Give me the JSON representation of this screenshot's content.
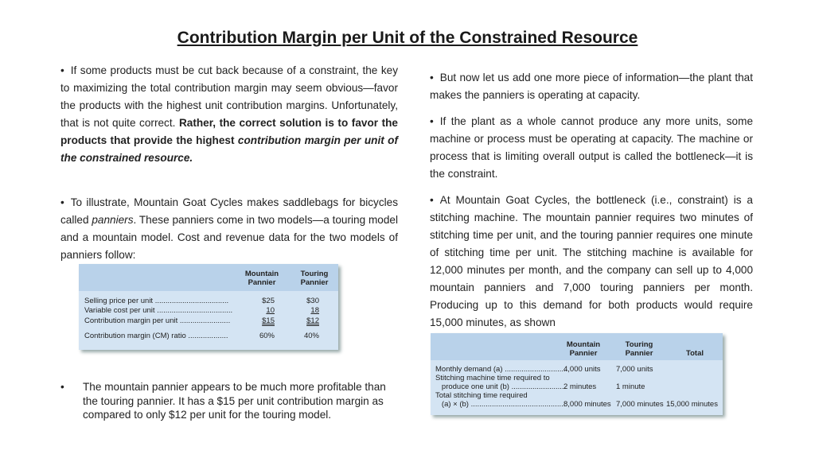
{
  "title": "Contribution Margin per Unit of the Constrained Resource",
  "bullet": "•",
  "p1": {
    "t1": "If some products must be cut back because of a constraint, the key to maximizing the total contribution margin may seem obvious—favor the products with the highest unit contribution margins. Unfortunately, that is not quite correct. ",
    "t2": "Rather, the correct solution is to favor the products that provide the highest ",
    "t3": "contribution margin per unit of the constrained resource."
  },
  "p2": {
    "t1": "To illustrate, Mountain Goat Cycles makes saddlebags for bicycles called ",
    "t2": "panniers",
    "t3": ". These panniers come in two models—a touring model and a mountain model. Cost and revenue data for the two models of panniers follow:"
  },
  "table1": {
    "col1": "Mountain\nPannier",
    "col2": "Touring\nPannier",
    "rows": [
      {
        "label": "Selling price per unit ...................................",
        "mountain": "$25",
        "touring": "$30"
      },
      {
        "label": "Variable cost per unit ....................................",
        "mountain": "10",
        "touring": "18"
      },
      {
        "label": "Contribution margin per unit ........................",
        "mountain": "$15",
        "touring": "$12"
      },
      {
        "label": "Contribution margin (CM) ratio ...................",
        "mountain": "60%",
        "touring": "40%"
      }
    ]
  },
  "p4": "The mountain pannier appears to be much more profitable than the touring pannier. It has a $15 per unit contribution margin as compared to only $12 per unit for the touring model.",
  "p5": "But now let us add one more piece of information—the plant that makes the panniers is operating at capacity.",
  "p6": "If the plant as a whole cannot produce any more units, some machine or process must be operating at capacity. The machine or process that is limiting overall output is called the bottleneck—it is the constraint.",
  "p7": "At Mountain Goat Cycles, the bottleneck (i.e., constraint) is a stitching machine. The mountain pannier requires two minutes of stitching time per unit, and the touring pannier requires one minute of stitching time per unit. The stitching machine is available for 12,000 minutes per month, and the company can sell up to 4,000 mountain panniers and 7,000 touring panniers per month. Producing up to this demand for both products would require 15,000 minutes, as shown",
  "table2": {
    "col1": "Mountain\nPannier",
    "col2": "Touring\nPannier",
    "col3": "Total",
    "rows": [
      {
        "label": "Monthly demand (a) ..............................",
        "mountain": "4,000 units",
        "touring": "7,000 units",
        "total": ""
      },
      {
        "label": "Stitching machine time required to",
        "mountain": "",
        "touring": "",
        "total": ""
      },
      {
        "label": "   produce one unit (b) ..........................",
        "mountain": "2 minutes",
        "touring": "1 minute",
        "total": ""
      },
      {
        "label": "Total stitching time required",
        "mountain": "",
        "touring": "",
        "total": ""
      },
      {
        "label": "   (a) × (b) .............................................",
        "mountain": "8,000 minutes",
        "touring": "7,000 minutes",
        "total": "15,000 minutes"
      }
    ]
  }
}
